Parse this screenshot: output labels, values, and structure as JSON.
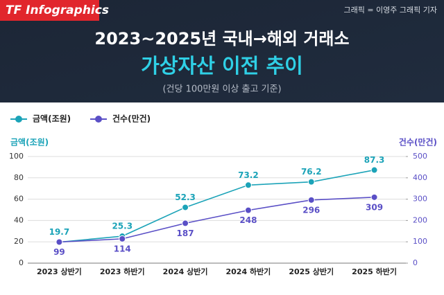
{
  "header": {
    "brand": "TF Infographics",
    "credit": "그래픽 = 이영주 그래픽 기자"
  },
  "chart_data": {
    "type": "line",
    "title": "2023~2025년 국내→해외 거래소",
    "subtitle": "가상자산 이전 추이",
    "note": "(건당 100만원 이상 출고 기준)",
    "y_label": "금액(조원)",
    "y2_label": "건수(만건)",
    "categories": [
      "2023 상반기",
      "2023 하반기",
      "2024 상반기",
      "2024 하반기",
      "2025 상반기",
      "2025 하반기"
    ],
    "series": [
      {
        "name": "금액(조원)",
        "color": "#1ba3b8",
        "values": [
          19.7,
          25.3,
          52.3,
          73.2,
          76.2,
          87.3
        ]
      },
      {
        "name": "건수(만건)",
        "color": "#5a4fc6",
        "axis": "y2",
        "values": [
          99,
          114,
          187,
          248,
          296,
          309
        ]
      }
    ],
    "ylim": [
      0,
      100
    ],
    "yticks": [
      0,
      20,
      40,
      60,
      80,
      100
    ],
    "y2lim": [
      0,
      500
    ],
    "y2ticks": [
      0,
      100,
      200,
      300,
      400,
      500
    ],
    "grid": true,
    "legend": "top-left"
  }
}
